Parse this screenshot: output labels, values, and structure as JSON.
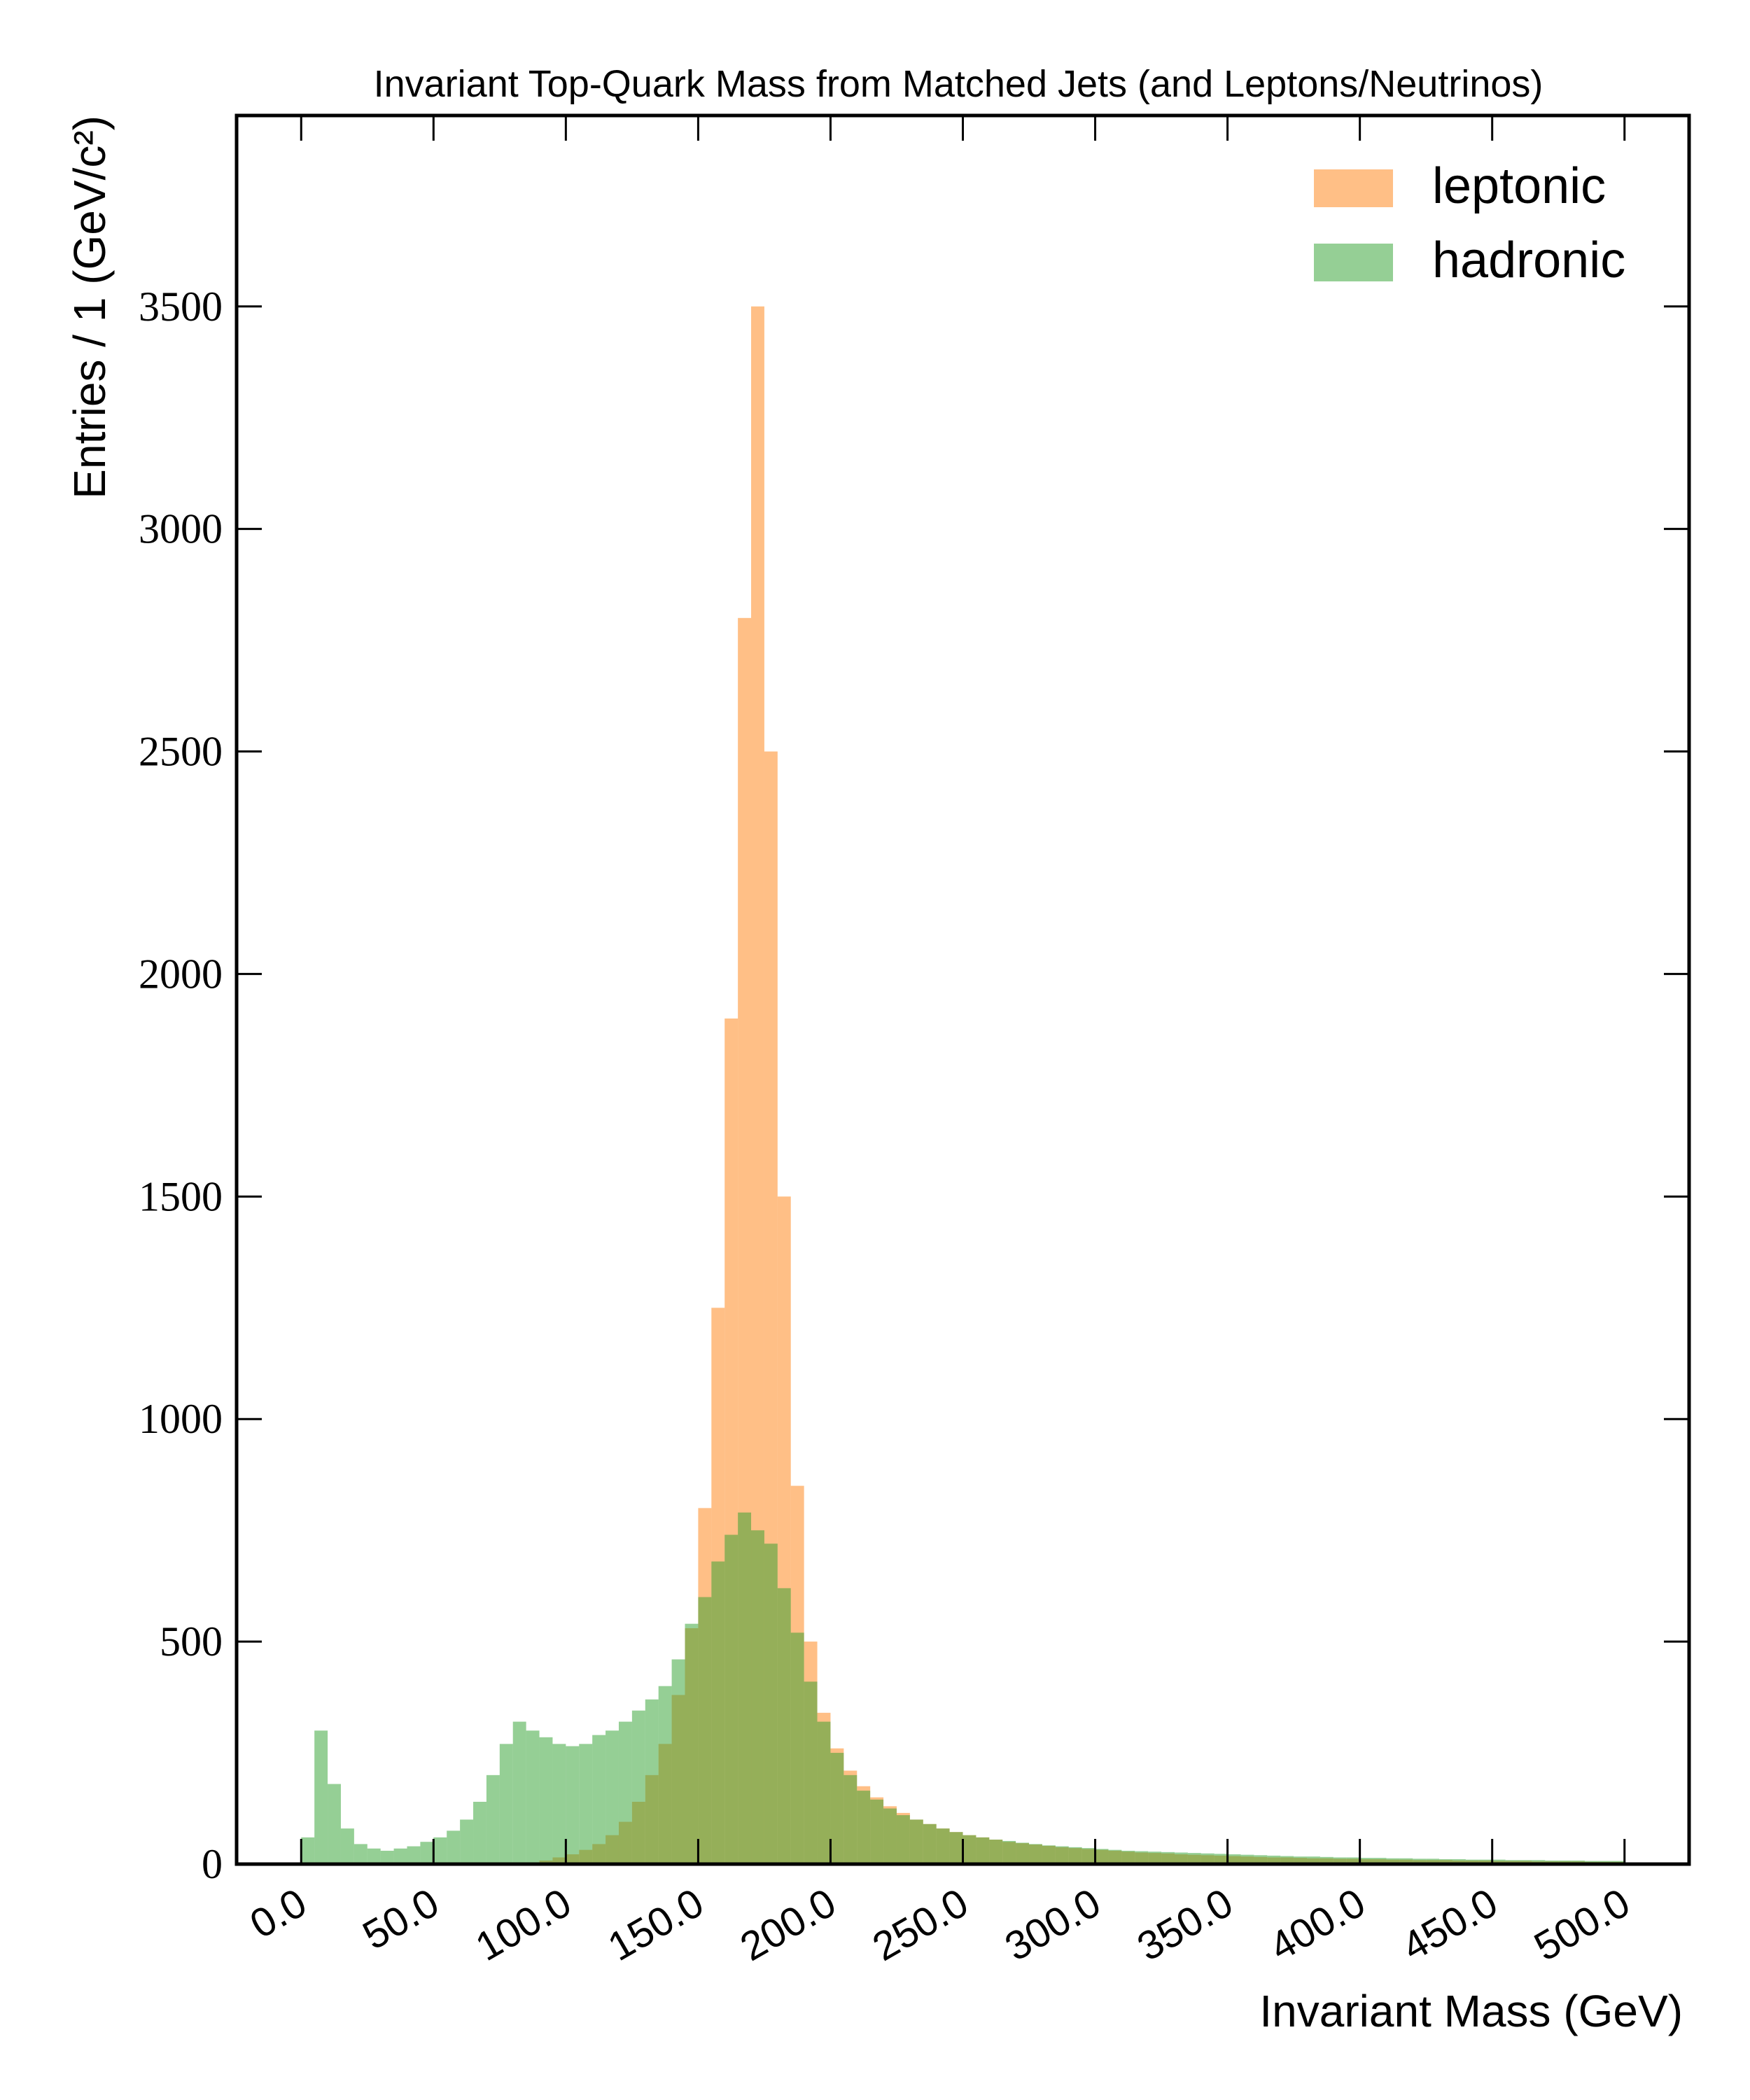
{
  "chart_data": {
    "type": "histogram",
    "title": "Invariant Top-Quark Mass from Matched Jets (and Leptons/Neutrinos)",
    "x_label": "Invariant Mass (GeV)",
    "y_label": "Entries / 1 (GeV/c²)",
    "bins": [
      0,
      5,
      10,
      15,
      20,
      25,
      30,
      35,
      40,
      45,
      50,
      55,
      60,
      65,
      70,
      75,
      80,
      85,
      90,
      95,
      100,
      105,
      110,
      115,
      120,
      125,
      130,
      135,
      140,
      145,
      150,
      155,
      160,
      165,
      170,
      175,
      180,
      185,
      190,
      195,
      200,
      205,
      210,
      215,
      220,
      225,
      230,
      235,
      240,
      245,
      250,
      255,
      260,
      265,
      270,
      275,
      280,
      285,
      290,
      295,
      300,
      305,
      310,
      315,
      320,
      325,
      330,
      335,
      340,
      345,
      350,
      355,
      360,
      365,
      370,
      375,
      380,
      385,
      390,
      395,
      400,
      405,
      410,
      415,
      420,
      425,
      430,
      435,
      440,
      445,
      450,
      455,
      460,
      465,
      470,
      475,
      480,
      485,
      490,
      495,
      500
    ],
    "series": [
      {
        "name": "leptonic",
        "color": "#ff7f0e",
        "alpha": 0.5,
        "values": [
          0,
          0,
          0,
          0,
          0,
          0,
          0,
          0,
          0,
          0,
          0,
          0,
          0,
          0,
          0,
          0,
          0,
          3,
          8,
          15,
          22,
          32,
          45,
          65,
          95,
          140,
          200,
          270,
          380,
          530,
          800,
          1250,
          1900,
          2800,
          3500,
          2500,
          1500,
          850,
          500,
          340,
          260,
          210,
          175,
          150,
          130,
          115,
          100,
          90,
          80,
          72,
          65,
          60,
          55,
          50,
          47,
          44,
          41,
          38,
          36,
          34,
          32,
          30,
          28,
          26,
          25,
          24,
          22,
          21,
          20,
          19,
          18,
          17,
          16,
          15,
          15,
          14,
          13,
          13,
          12,
          12,
          11,
          11,
          10,
          10,
          9,
          9,
          9,
          8,
          8,
          8,
          7,
          7,
          7,
          6,
          6,
          6,
          6,
          5,
          5,
          5
        ]
      },
      {
        "name": "hadronic",
        "color": "#2ca02c",
        "alpha": 0.5,
        "values": [
          60,
          300,
          180,
          80,
          45,
          35,
          30,
          35,
          40,
          50,
          60,
          75,
          100,
          140,
          200,
          270,
          320,
          300,
          285,
          270,
          265,
          270,
          290,
          300,
          320,
          345,
          370,
          400,
          460,
          540,
          600,
          680,
          740,
          790,
          750,
          720,
          620,
          520,
          410,
          320,
          250,
          200,
          165,
          145,
          125,
          110,
          100,
          90,
          80,
          72,
          65,
          60,
          55,
          52,
          48,
          45,
          42,
          40,
          38,
          36,
          34,
          32,
          30,
          29,
          28,
          27,
          26,
          25,
          24,
          23,
          22,
          21,
          20,
          19,
          18,
          17,
          17,
          16,
          15,
          15,
          14,
          14,
          13,
          13,
          12,
          12,
          11,
          11,
          10,
          10,
          10,
          9,
          9,
          9,
          8,
          8,
          8,
          7,
          7,
          7
        ]
      }
    ],
    "xlim": [
      -24.4,
      524.4
    ],
    "ylim": [
      0,
      3929
    ],
    "xticks": [
      {
        "value": 0,
        "label": "0.0"
      },
      {
        "value": 50,
        "label": "50.0"
      },
      {
        "value": 100,
        "label": "100.0"
      },
      {
        "value": 150,
        "label": "150.0"
      },
      {
        "value": 200,
        "label": "200.0"
      },
      {
        "value": 250,
        "label": "250.0"
      },
      {
        "value": 300,
        "label": "300.0"
      },
      {
        "value": 350,
        "label": "350.0"
      },
      {
        "value": 400,
        "label": "400.0"
      },
      {
        "value": 450,
        "label": "450.0"
      },
      {
        "value": 500,
        "label": "500.0"
      }
    ],
    "yticks": [
      0,
      500,
      1000,
      1500,
      2000,
      2500,
      3000,
      3500
    ],
    "legend": "upper right"
  }
}
